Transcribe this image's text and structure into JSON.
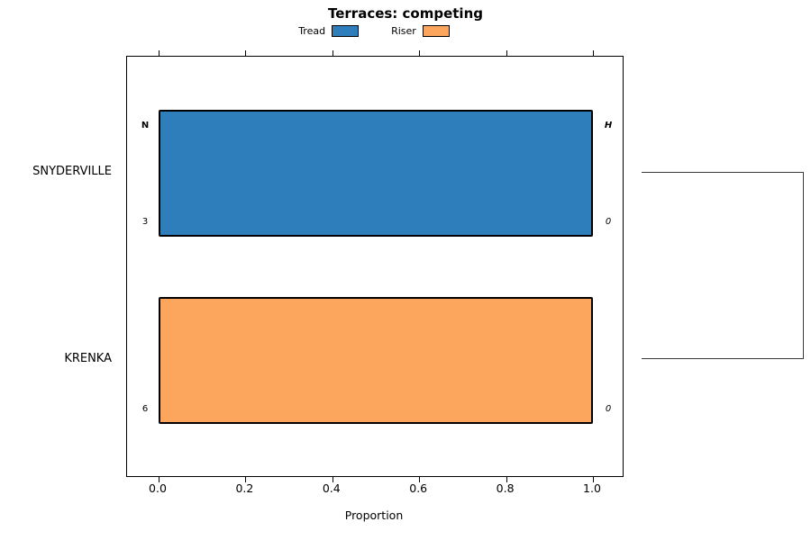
{
  "chart_data": {
    "type": "bar",
    "orientation": "horizontal",
    "title": "Terraces: competing",
    "xlabel": "Proportion",
    "xlim": [
      0,
      1
    ],
    "xticks": [
      0.0,
      0.2,
      0.4,
      0.6,
      0.8,
      1.0
    ],
    "xtick_labels": [
      "0.0",
      "0.2",
      "0.4",
      "0.6",
      "0.8",
      "1.0"
    ],
    "categories": [
      "SNYDERVILLE",
      "KRENKA"
    ],
    "grid": false,
    "legend_position": "top",
    "legend": [
      {
        "label": "Tread",
        "color": "#2E7EBB"
      },
      {
        "label": "Riser",
        "color": "#FBA55D"
      }
    ],
    "bars": [
      {
        "category": "SNYDERVILLE",
        "series": "Tread",
        "value": 1.0,
        "color": "#2E7EBB",
        "labels": {
          "top_left": "N",
          "bottom_left": "3",
          "top_right": "H",
          "bottom_right": "0"
        }
      },
      {
        "category": "KRENKA",
        "series": "Riser",
        "value": 1.0,
        "color": "#FBA55D",
        "labels": {
          "bottom_left": "6",
          "bottom_right": "0"
        }
      }
    ]
  }
}
